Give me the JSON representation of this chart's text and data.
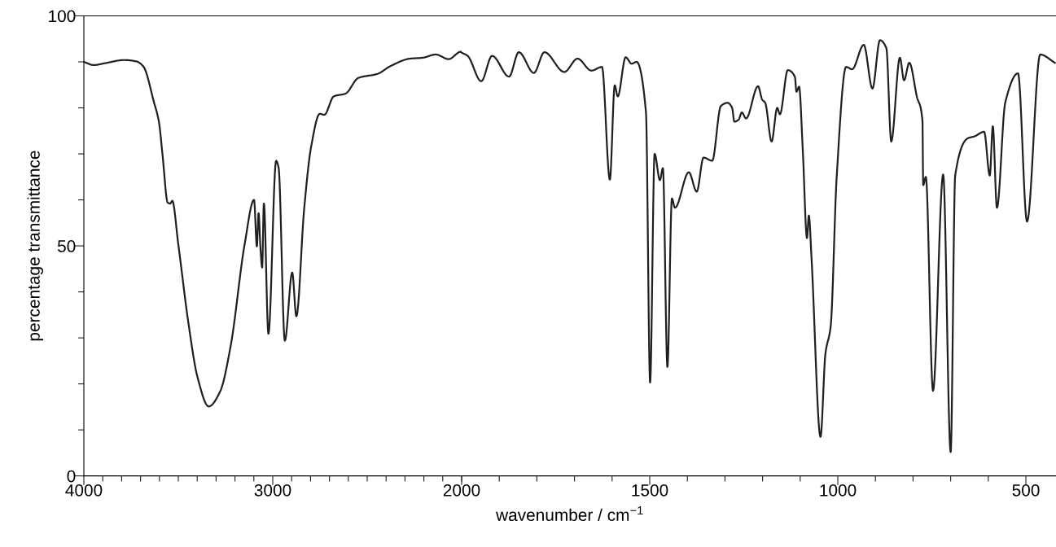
{
  "chart_data": [
    {
      "type": "line",
      "ylabel": "percentage transmittance",
      "xlim": [
        4000,
        2000
      ],
      "ylim": [
        0,
        100
      ],
      "xticks": [
        4000,
        {
          "value": 3900,
          "label": null
        },
        {
          "value": 3800,
          "label": null
        },
        {
          "value": 3700,
          "label": null
        },
        {
          "value": 3600,
          "label": null
        },
        {
          "value": 3500,
          "label": null
        },
        {
          "value": 3400,
          "label": null
        },
        {
          "value": 3300,
          "label": null
        },
        {
          "value": 3200,
          "label": null
        },
        {
          "value": 3100,
          "label": null
        },
        3000,
        {
          "value": 2900,
          "label": null
        },
        {
          "value": 2800,
          "label": null
        },
        {
          "value": 2700,
          "label": null
        },
        {
          "value": 2600,
          "label": null
        },
        {
          "value": 2500,
          "label": null
        },
        {
          "value": 2400,
          "label": null
        },
        {
          "value": 2300,
          "label": null
        },
        {
          "value": 2200,
          "label": null
        },
        {
          "value": 2100,
          "label": null
        },
        2000
      ],
      "yticks": [
        0,
        {
          "value": 10,
          "label": null
        },
        {
          "value": 20,
          "label": null
        },
        {
          "value": 30,
          "label": null
        },
        {
          "value": 40,
          "label": null
        },
        50,
        {
          "value": 60,
          "label": null
        },
        {
          "value": 70,
          "label": null
        },
        {
          "value": 80,
          "label": null
        },
        {
          "value": 90,
          "label": null
        },
        100
      ],
      "grid": false,
      "marker": "none",
      "line_style": "solid",
      "series": [
        {
          "color": "#231f20",
          "x": [
            4000,
            3948,
            3889,
            3787,
            3722,
            3685,
            3630,
            3602,
            3584,
            3556,
            3543,
            3532,
            3500,
            3445,
            3398,
            3339,
            3278,
            3223,
            3149,
            3099,
            3084,
            3075,
            3065,
            3056,
            3047,
            3023,
            2982,
            2969,
            2936,
            2897,
            2875,
            2834,
            2797,
            2751,
            2727,
            2677,
            2615,
            2547,
            2445,
            2376,
            2274,
            2206,
            2137,
            2069,
            2004,
            2000
          ],
          "values": [
            90.0,
            89.3,
            89.7,
            90.4,
            90.1,
            89.0,
            81.4,
            76.8,
            70.0,
            59.4,
            59.2,
            59.8,
            50.3,
            32.8,
            21.4,
            15.1,
            18.4,
            28.2,
            50.3,
            60.0,
            49.9,
            57.1,
            49.4,
            45.3,
            59.2,
            30.9,
            68.5,
            67.0,
            29.4,
            44.2,
            34.7,
            57.9,
            71.5,
            78.7,
            78.5,
            82.5,
            83.1,
            86.5,
            87.4,
            89.1,
            90.7,
            90.9,
            91.6,
            90.6,
            92.2,
            92.0
          ]
        }
      ]
    },
    {
      "type": "line",
      "xlabel": "wavenumber / cm$^{−1}$",
      "xlim": [
        2000,
        420
      ],
      "ylim": [
        0,
        100
      ],
      "tick_labels": "x",
      "xticks": [
        {
          "value": 2000,
          "label": null
        },
        {
          "value": 1900,
          "label": null
        },
        {
          "value": 1800,
          "label": null
        },
        {
          "value": 1700,
          "label": null
        },
        {
          "value": 1600,
          "label": null
        },
        1500,
        {
          "value": 1400,
          "label": null
        },
        {
          "value": 1300,
          "label": null
        },
        {
          "value": 1200,
          "label": null
        },
        {
          "value": 1100,
          "label": null
        },
        1000,
        {
          "value": 900,
          "label": null
        },
        {
          "value": 800,
          "label": null
        },
        {
          "value": 700,
          "label": null
        },
        {
          "value": 600,
          "label": null
        },
        500
      ],
      "grid": false,
      "marker": "none",
      "line_style": "solid",
      "series": [
        {
          "color": "#231f20",
          "x": [
            2000,
            1984,
            1948,
            1919,
            1874,
            1848,
            1808,
            1780,
            1727,
            1692,
            1655,
            1627,
            1606,
            1593,
            1585,
            1564,
            1548,
            1535,
            1510,
            1499,
            1487,
            1473,
            1465,
            1453,
            1441,
            1433,
            1396,
            1375,
            1357,
            1334,
            1311,
            1293,
            1281,
            1275,
            1264,
            1255,
            1244,
            1212,
            1201,
            1193,
            1176,
            1161,
            1154,
            1133,
            1114,
            1110,
            1103,
            1093,
            1082,
            1077,
            1070,
            1046,
            1033,
            1019,
            1003,
            978,
            962,
            931,
            908,
            888,
            871,
            858,
            835,
            824,
            810,
            790,
            775,
            773,
            766,
            747,
            720,
            700,
            688,
            654,
            637,
            611,
            596,
            588,
            577,
            555,
            521,
            497,
            462,
            423
          ],
          "values": [
            92.0,
            91.3,
            85.8,
            91.3,
            86.8,
            92.1,
            87.6,
            92.1,
            87.8,
            90.7,
            88.1,
            88.9,
            64.4,
            84.9,
            82.5,
            91.0,
            89.6,
            90.0,
            79.0,
            20.3,
            70.0,
            64.3,
            66.9,
            23.7,
            60.3,
            58.3,
            66.0,
            61.8,
            69.2,
            68.5,
            80.4,
            81.1,
            80.0,
            77.0,
            77.4,
            79.0,
            77.7,
            84.7,
            81.8,
            81.1,
            72.7,
            80.0,
            78.6,
            88.2,
            86.7,
            83.5,
            84.6,
            70.6,
            51.7,
            56.6,
            47.5,
            8.5,
            26.5,
            32.5,
            65.0,
            88.9,
            88.4,
            93.7,
            84.2,
            94.7,
            93.0,
            72.7,
            90.9,
            86.0,
            89.8,
            82.5,
            77.2,
            63.2,
            65.0,
            18.5,
            65.5,
            5.2,
            65.3,
            73.4,
            73.8,
            74.8,
            65.3,
            76.0,
            58.3,
            81.1,
            87.5,
            55.3,
            91.6,
            89.8
          ]
        }
      ]
    }
  ]
}
